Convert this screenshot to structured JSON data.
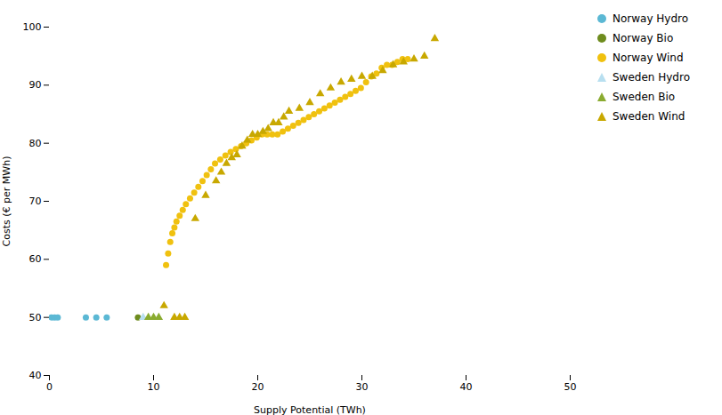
{
  "chart_data": {
    "type": "scatter",
    "xlabel": "Supply Potential (TWh)",
    "ylabel": "Costs (€ per MWh)",
    "xlim": [
      0,
      50
    ],
    "ylim": [
      40,
      100
    ],
    "xticks": [
      0,
      10,
      20,
      30,
      40,
      50
    ],
    "yticks": [
      40,
      50,
      60,
      70,
      80,
      90,
      100
    ],
    "grid": false,
    "legend": "upper right",
    "series": [
      {
        "name": "Norway Hydro",
        "color": "#5bb8d4",
        "marker": "circle",
        "x": [
          0.2,
          0.5,
          0.8,
          3.5,
          4.5,
          5.5
        ],
        "values": [
          50,
          50,
          50,
          50,
          50,
          50
        ]
      },
      {
        "name": "Norway Bio",
        "color": "#6e8c1e",
        "marker": "circle",
        "x": [
          8.5
        ],
        "values": [
          50
        ]
      },
      {
        "name": "Norway Wind",
        "color": "#f0c10f",
        "marker": "circle",
        "x": [
          11.2,
          11.4,
          11.6,
          11.8,
          12.0,
          12.2,
          12.5,
          12.8,
          13.1,
          13.5,
          13.9,
          14.3,
          14.7,
          15.1,
          15.5,
          15.9,
          16.4,
          16.9,
          17.4,
          17.9,
          18.4,
          18.9,
          19.4,
          19.9,
          20.4,
          20.9,
          21.4,
          21.9,
          22.4,
          22.9,
          23.4,
          23.9,
          24.4,
          24.9,
          25.4,
          25.9,
          26.4,
          26.9,
          27.4,
          27.9,
          28.4,
          28.9,
          29.4,
          29.9,
          30.4,
          30.9,
          31.4,
          31.9,
          32.4,
          32.9,
          33.4,
          33.9,
          34.4
        ],
        "values": [
          59,
          61,
          63,
          64.5,
          65.5,
          66.5,
          67.5,
          68.5,
          69.5,
          70.5,
          71.5,
          72.5,
          73.5,
          74.5,
          75.5,
          76.5,
          77.2,
          77.9,
          78.5,
          79.0,
          79.5,
          80.0,
          80.5,
          81.0,
          81.5,
          81.5,
          81.5,
          81.5,
          82.0,
          82.5,
          83.0,
          83.5,
          84.0,
          84.5,
          85.0,
          85.5,
          86.0,
          86.5,
          87.0,
          87.5,
          88.0,
          88.5,
          89.0,
          89.5,
          90.5,
          91.5,
          92.0,
          93.0,
          93.5,
          93.5,
          94.0,
          94.5,
          94.5
        ]
      },
      {
        "name": "Sweden Hydro",
        "color": "#b8dff0",
        "marker": "triangle",
        "x": [
          9.0
        ],
        "values": [
          50
        ]
      },
      {
        "name": "Sweden Bio",
        "color": "#8aab30",
        "marker": "triangle",
        "x": [
          9.5,
          10.0,
          10.5
        ],
        "values": [
          50,
          50,
          50
        ]
      },
      {
        "name": "Sweden Wind",
        "color": "#c8a800",
        "marker": "triangle",
        "x": [
          11.0,
          12.0,
          12.5,
          13.0,
          14.0,
          15.0,
          16.0,
          16.5,
          17.0,
          17.5,
          18.0,
          18.5,
          19.0,
          19.5,
          20.0,
          20.5,
          21.0,
          21.5,
          22.0,
          22.5,
          23.0,
          24.0,
          25.0,
          26.0,
          27.0,
          28.0,
          29.0,
          30.0,
          31.0,
          32.0,
          33.0,
          34.0,
          35.0,
          36.0,
          37.0
        ],
        "values": [
          52,
          50,
          50,
          50,
          67,
          71,
          73.5,
          75,
          76.5,
          77.5,
          78.0,
          79.5,
          80.5,
          81.5,
          81.5,
          82.0,
          82.5,
          83.5,
          83.5,
          84.5,
          85.5,
          86.0,
          87.0,
          88.5,
          89.5,
          90.5,
          91.0,
          91.5,
          91.5,
          92.5,
          93.5,
          94.0,
          94.5,
          95.0,
          98.0
        ]
      }
    ]
  }
}
